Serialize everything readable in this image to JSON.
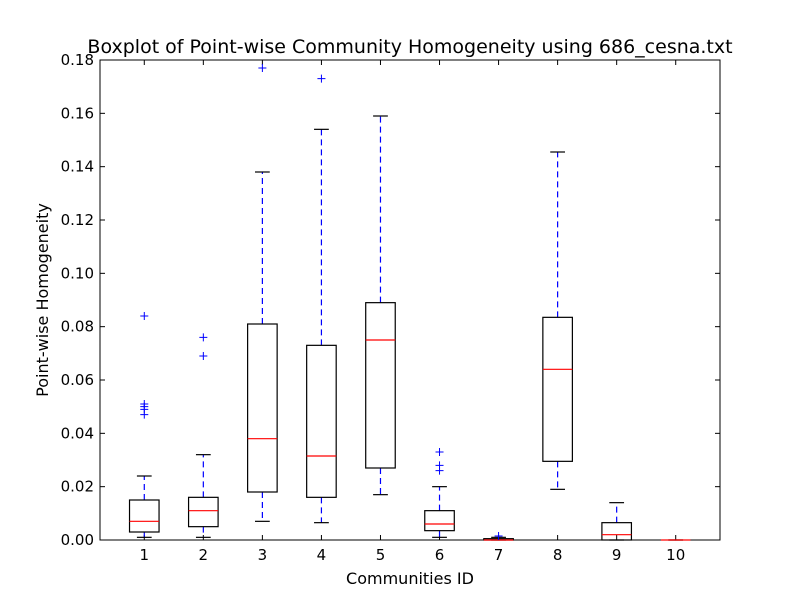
{
  "chart_data": {
    "type": "boxplot",
    "title": "Boxplot of Point-wise Community Homogeneity using 686_cesna.txt",
    "xlabel": "Communities ID",
    "ylabel": "Point-wise Homogeneity",
    "categories": [
      "1",
      "2",
      "3",
      "4",
      "5",
      "6",
      "7",
      "8",
      "9",
      "10"
    ],
    "ylim": [
      0,
      0.18
    ],
    "yticks": [
      "0.00",
      "0.02",
      "0.04",
      "0.06",
      "0.08",
      "0.10",
      "0.12",
      "0.14",
      "0.16",
      "0.18"
    ],
    "grid": false,
    "boxes": [
      {
        "whisker_low": 0.001,
        "q1": 0.003,
        "median": 0.007,
        "q3": 0.015,
        "whisker_high": 0.024,
        "outliers": [
          0.047,
          0.049,
          0.05,
          0.051,
          0.084
        ]
      },
      {
        "whisker_low": 0.001,
        "q1": 0.005,
        "median": 0.011,
        "q3": 0.016,
        "whisker_high": 0.032,
        "outliers": [
          0.069,
          0.076
        ]
      },
      {
        "whisker_low": 0.007,
        "q1": 0.018,
        "median": 0.038,
        "q3": 0.081,
        "whisker_high": 0.138,
        "outliers": [
          0.177
        ]
      },
      {
        "whisker_low": 0.0065,
        "q1": 0.016,
        "median": 0.0315,
        "q3": 0.073,
        "whisker_high": 0.154,
        "outliers": [
          0.173
        ]
      },
      {
        "whisker_low": 0.017,
        "q1": 0.027,
        "median": 0.075,
        "q3": 0.089,
        "whisker_high": 0.159,
        "outliers": []
      },
      {
        "whisker_low": 0.001,
        "q1": 0.0035,
        "median": 0.006,
        "q3": 0.011,
        "whisker_high": 0.02,
        "outliers": [
          0.026,
          0.028,
          0.033
        ]
      },
      {
        "whisker_low": 0.0,
        "q1": 0.0,
        "median": 0.0,
        "q3": 0.0005,
        "whisker_high": 0.001,
        "outliers": [
          0.0015
        ]
      },
      {
        "whisker_low": 0.019,
        "q1": 0.0295,
        "median": 0.064,
        "q3": 0.0835,
        "whisker_high": 0.1455,
        "outliers": []
      },
      {
        "whisker_low": 0.0,
        "q1": 0.0,
        "median": 0.002,
        "q3": 0.0065,
        "whisker_high": 0.014,
        "outliers": []
      },
      {
        "whisker_low": 0.0,
        "q1": 0.0,
        "median": 0.0,
        "q3": 0.0,
        "whisker_high": 0.0,
        "outliers": []
      }
    ],
    "colors": {
      "box": "#000000",
      "median": "#ff0000",
      "whisker": "#0000ff",
      "cap": "#000000",
      "outlier": "#0000ff"
    }
  }
}
